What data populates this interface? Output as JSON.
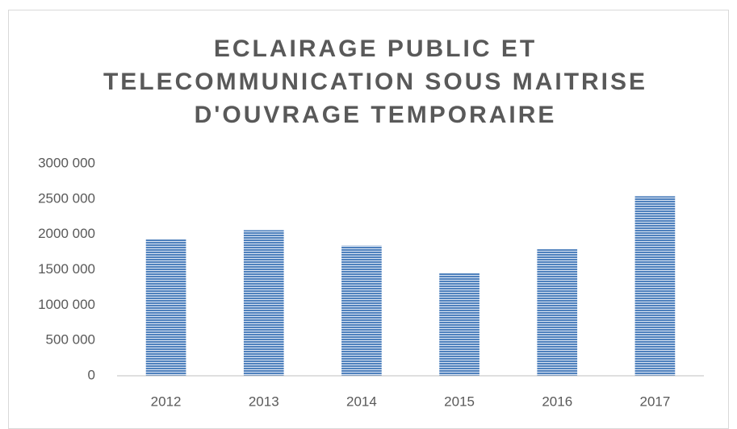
{
  "chart_data": {
    "type": "bar",
    "title": "ECLAIRAGE PUBLIC ET TELECOMMUNICATION SOUS MAITRISE D'OUVRAGE TEMPORAIRE",
    "categories": [
      "2012",
      "2013",
      "2014",
      "2015",
      "2016",
      "2017"
    ],
    "values": [
      1930000,
      2060000,
      1840000,
      1450000,
      1790000,
      2540000
    ],
    "color": "#4f81bd",
    "ylim": [
      0,
      3000000
    ],
    "yticks": [
      0,
      {
        "value": 500000,
        "label": "500 000"
      },
      {
        "value": 1000000,
        "label": "1000 000"
      },
      {
        "value": 1500000,
        "label": "1500 000"
      },
      {
        "value": 2000000,
        "label": "2000 000"
      },
      {
        "value": 2500000,
        "label": "2500 000"
      },
      {
        "value": 3000000,
        "label": "3000 000"
      }
    ],
    "grid": false
  }
}
